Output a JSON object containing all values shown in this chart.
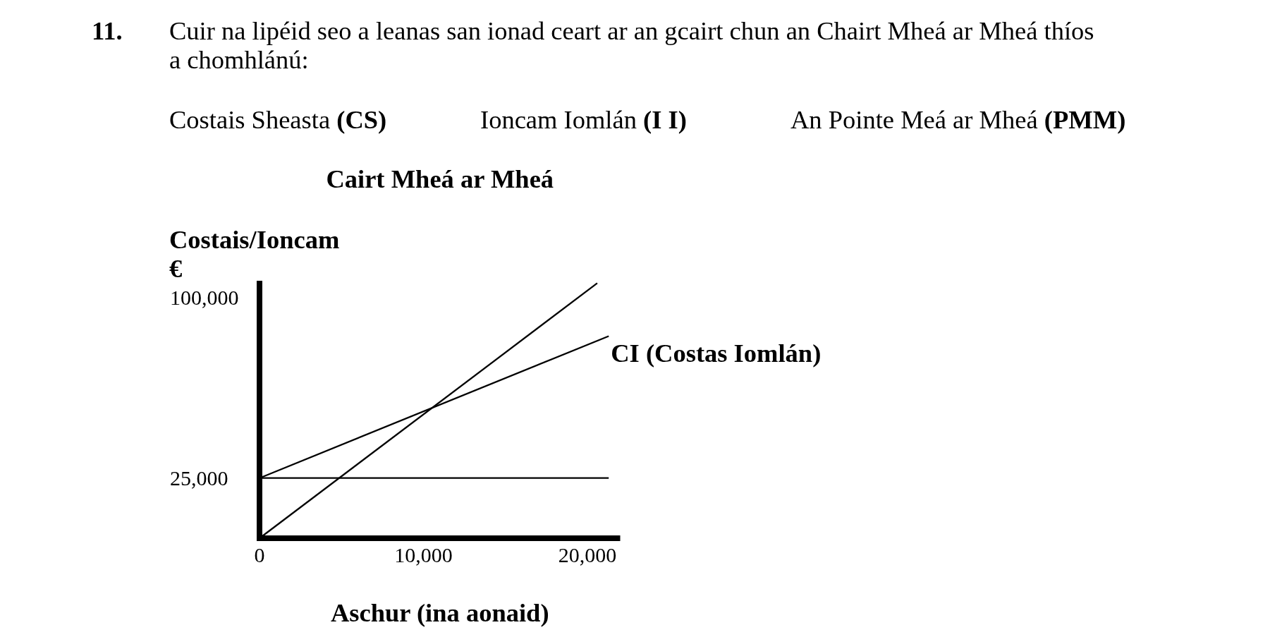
{
  "chart_data": {
    "type": "line",
    "title": "Cairt Mheá ar Mheá",
    "xlabel": "Aschur (ina aonaid)",
    "ylabel": "Costais/Ioncam\n€",
    "annotations": [
      "11.",
      "Cuir na lipéid seo a leanas san ionad ceart ar an gcairt chun an Chairt Mheá ar Mheá thíos a chomhlánú:",
      "Costais Sheasta (CS)",
      "Ioncam Iomlán (I I)",
      "An Pointe Meá ar Mheá (PMM)"
    ],
    "xlim": [
      0,
      22000
    ],
    "xticks": [
      0,
      {
        "value": 10000,
        "label": "10,000"
      },
      {
        "value": 20000,
        "label": "20,000"
      }
    ],
    "ylim": [
      0,
      107000
    ],
    "yticks": [
      {
        "value": 25000,
        "label": "25,000"
      },
      {
        "value": 100000,
        "label": "100,000"
      }
    ],
    "series": [
      {
        "color": "#000000",
        "x": [
          0,
          21300
        ],
        "values": [
          25000,
          25000
        ]
      },
      {
        "name": "CI (Costas Iomlán)",
        "color": "#000000",
        "x": [
          0,
          21300
        ],
        "values": [
          25000,
          84000
        ]
      },
      {
        "color": "#000000",
        "x": [
          0,
          20600
        ],
        "values": [
          0,
          106000
        ]
      }
    ],
    "line_style": "solid"
  }
}
